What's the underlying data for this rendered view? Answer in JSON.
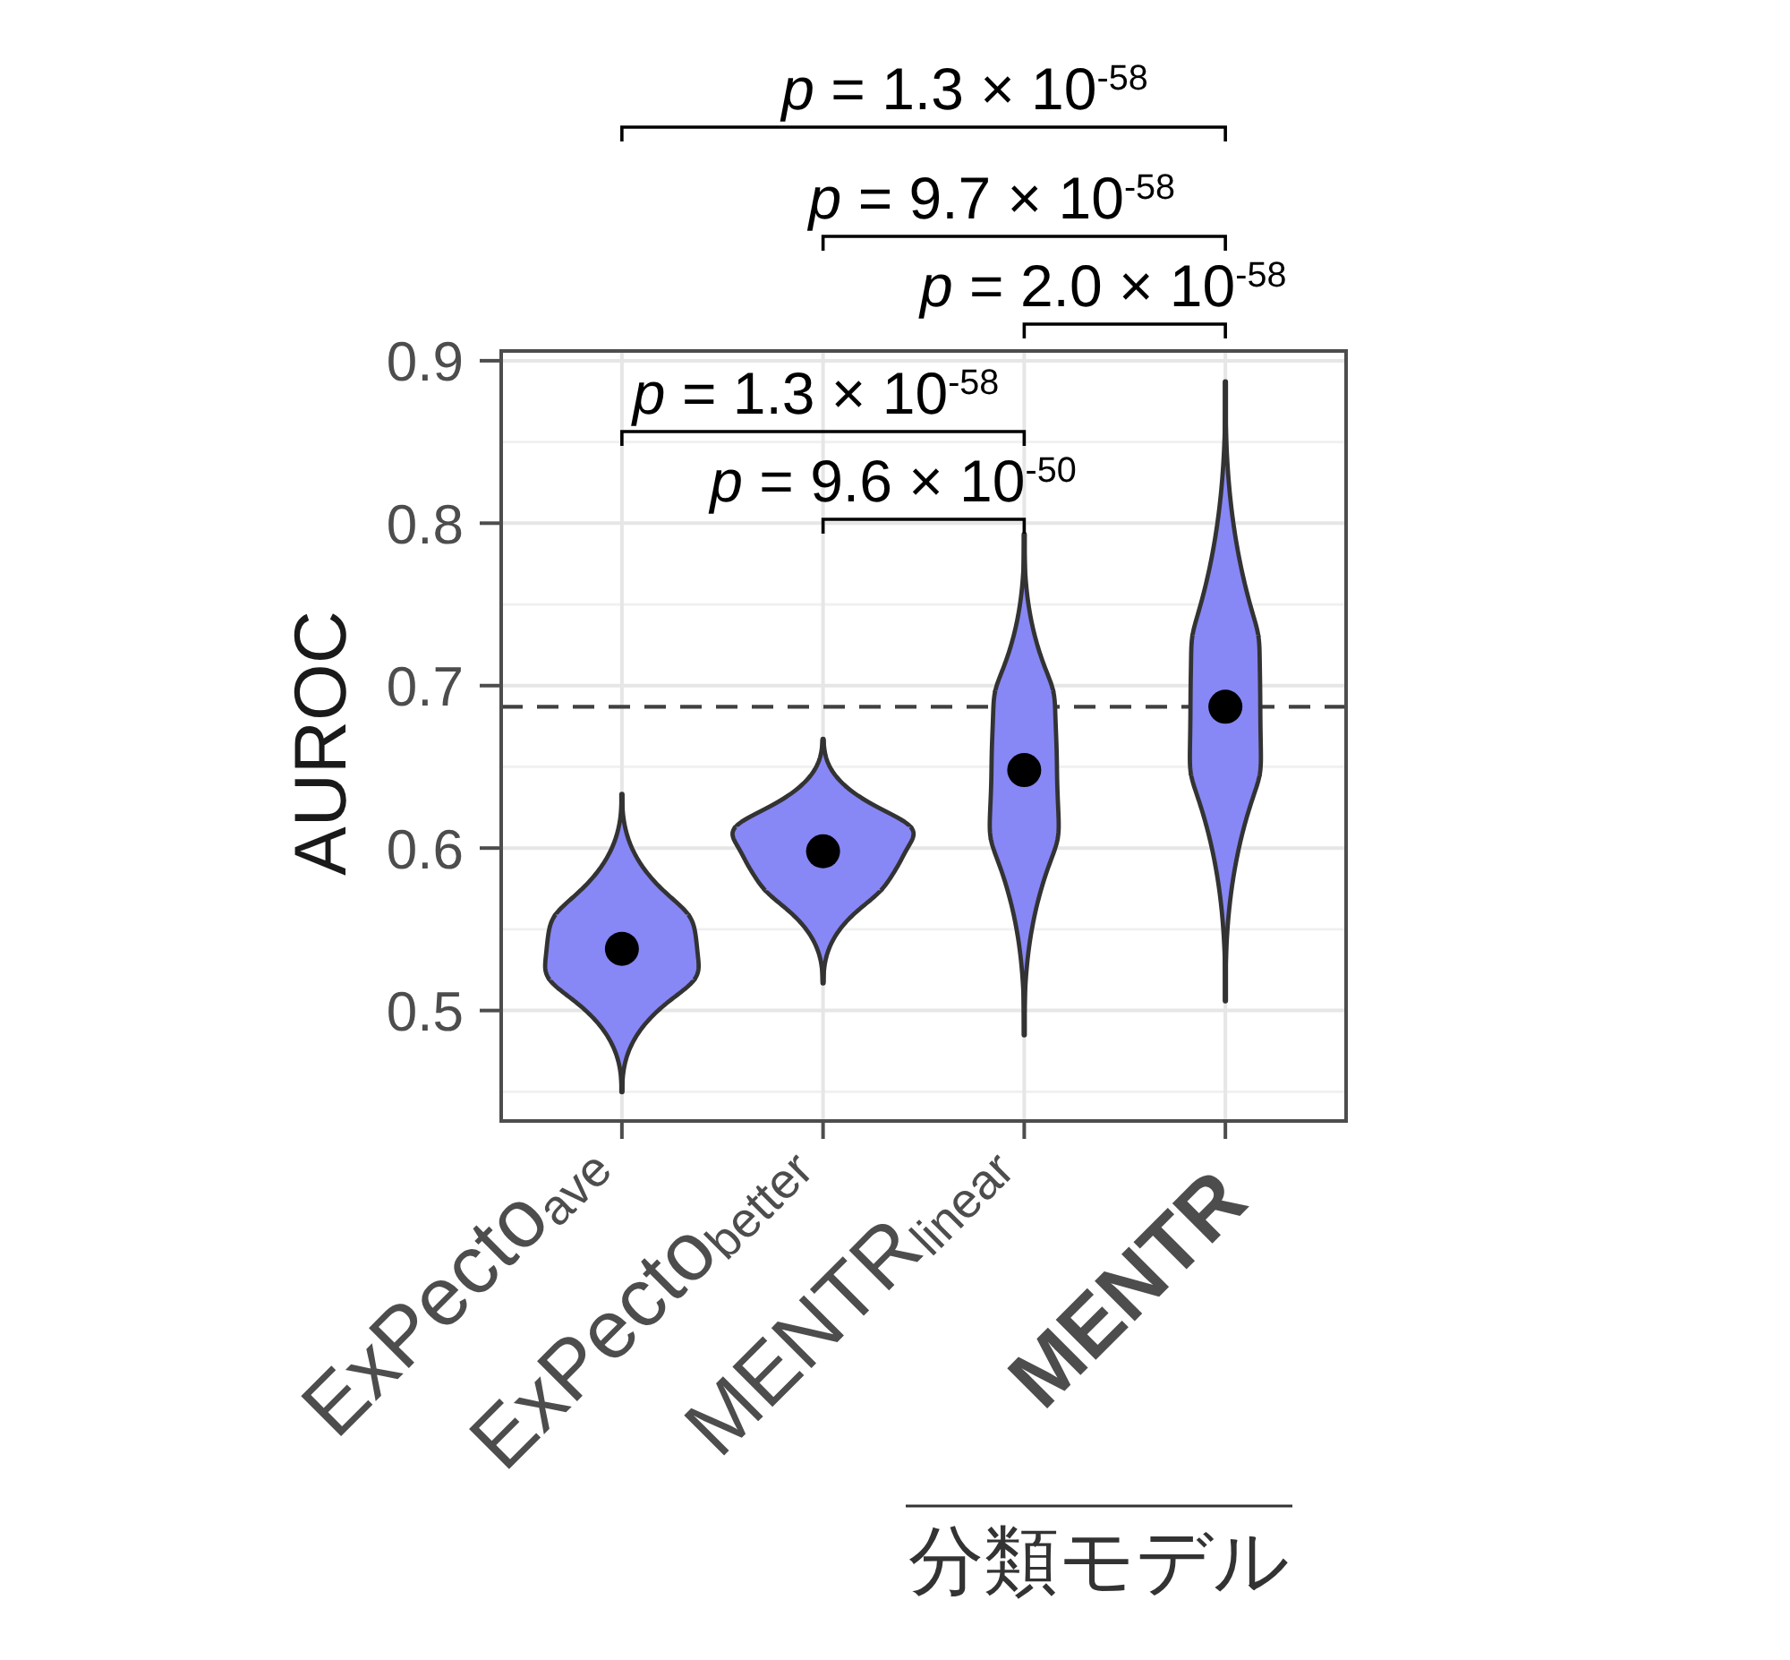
{
  "chart_data": {
    "type": "box",
    "categories": [
      "ExPecto$_{ave}$",
      "ExPecto$_{better}$",
      "MENTR$_{linear}$",
      "MENTR"
    ],
    "color": "#8787f5",
    "boxes": [
      {
        "low": 0.45,
        "q1": 0.519,
        "median": 0.538,
        "q3": 0.559,
        "high": 0.633
      },
      {
        "low": 0.517,
        "q1": 0.574,
        "median": 0.598,
        "q3": 0.613,
        "high": 0.667
      },
      {
        "low": 0.485,
        "q1": 0.605,
        "median": 0.648,
        "q3": 0.697,
        "high": 0.793
      },
      {
        "low": 0.506,
        "q1": 0.645,
        "median": 0.687,
        "q3": 0.731,
        "high": 0.887
      }
    ],
    "ylabel": "AUROC",
    "xlabel": "分類モデル",
    "ylim": [
      0.432,
      0.906
    ],
    "yticks": [
      {
        "value": 0.45,
        "label": null
      },
      0.5,
      {
        "value": 0.55,
        "label": null
      },
      0.6,
      {
        "value": 0.65,
        "label": null
      },
      0.7,
      {
        "value": 0.75,
        "label": null
      },
      0.8,
      {
        "value": 0.85,
        "label": null
      },
      0.9
    ],
    "grid": true,
    "ref_lines": [
      {
        "axis": "y",
        "value": 0.687,
        "color": "#404040",
        "line_style": "dashed"
      }
    ],
    "annotations": [
      "p = 1.3 × 10$^{-58}$",
      "p = 9.7 × 10$^{-58}$",
      "p = 2.0 × 10$^{-58}$",
      "p = 1.3 × 10$^{-58}$",
      "p = 9.6 × 10$^{-50}$"
    ]
  }
}
